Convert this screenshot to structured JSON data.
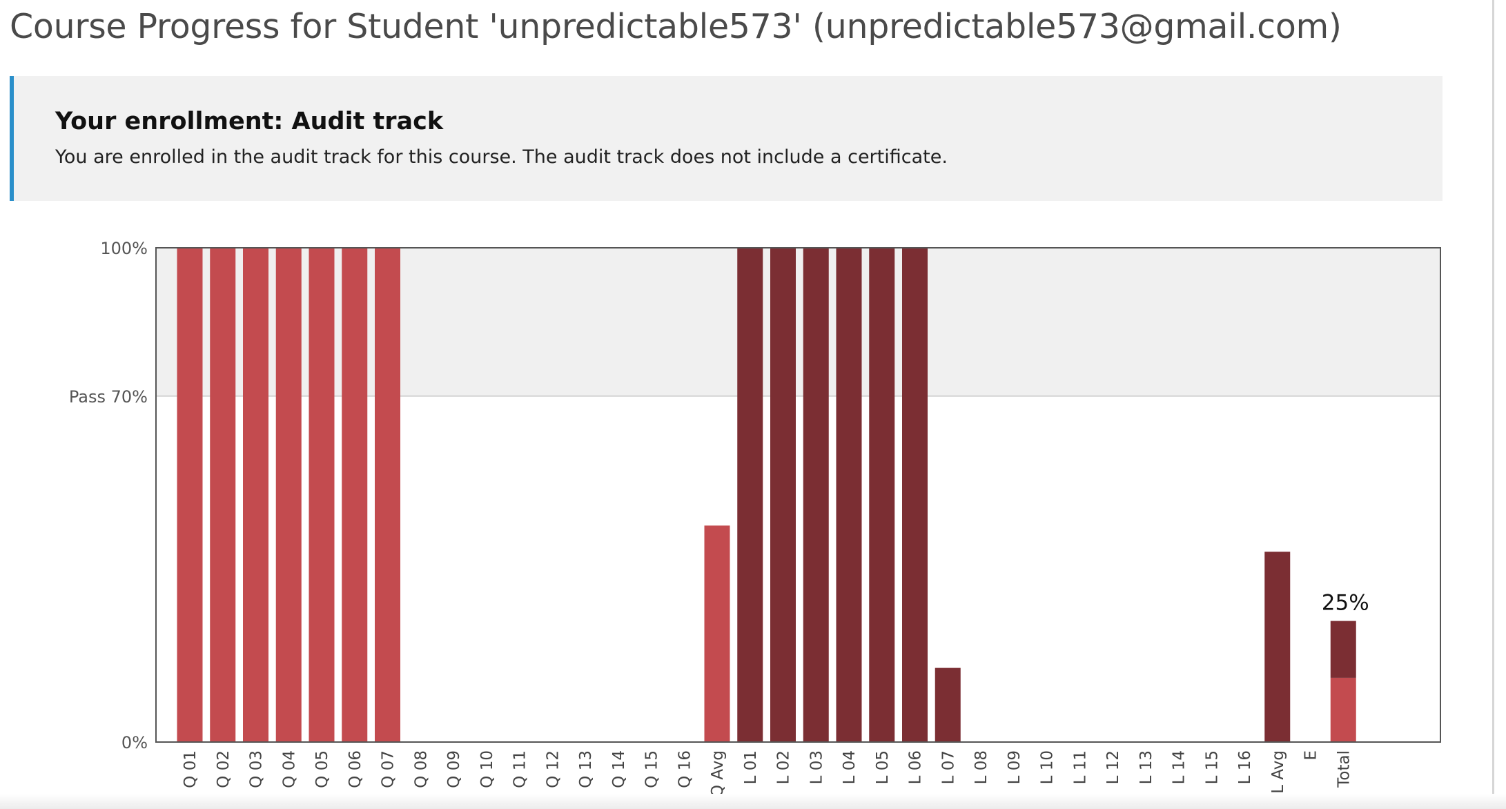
{
  "page": {
    "title": "Course Progress for Student 'unpredictable573' (unpredictable573@gmail.com)"
  },
  "enrollment": {
    "heading": "Your enrollment: Audit track",
    "message": "You are enrolled in the audit track for this course. The audit track does not include a certificate."
  },
  "colors": {
    "accent_border": "#2a8fca",
    "quiz_bar": "#c34b4f",
    "lab_bar": "#7b2e33",
    "pass_band": "#f0f0f0"
  },
  "chart_data": {
    "type": "bar",
    "ylim": [
      0,
      100
    ],
    "y_ticks": [
      {
        "value": 100,
        "label": "100%"
      },
      {
        "value": 70,
        "label": "Pass 70%"
      },
      {
        "value": 0,
        "label": "0%"
      }
    ],
    "pass_threshold": 70,
    "categories": [
      "Q 01",
      "Q 02",
      "Q 03",
      "Q 04",
      "Q 05",
      "Q 06",
      "Q 07",
      "Q 08",
      "Q 09",
      "Q 10",
      "Q 11",
      "Q 12",
      "Q 13",
      "Q 14",
      "Q 15",
      "Q 16",
      "Q Avg",
      "L 01",
      "L 02",
      "L 03",
      "L 04",
      "L 05",
      "L 06",
      "L 07",
      "L 08",
      "L 09",
      "L 10",
      "L 11",
      "L 12",
      "L 13",
      "L 14",
      "L 15",
      "L 16",
      "L Avg",
      "E",
      "Total"
    ],
    "bars": [
      {
        "category": "Q 01",
        "value": 100,
        "group": "quiz"
      },
      {
        "category": "Q 02",
        "value": 100,
        "group": "quiz"
      },
      {
        "category": "Q 03",
        "value": 100,
        "group": "quiz"
      },
      {
        "category": "Q 04",
        "value": 100,
        "group": "quiz"
      },
      {
        "category": "Q 05",
        "value": 100,
        "group": "quiz"
      },
      {
        "category": "Q 06",
        "value": 100,
        "group": "quiz"
      },
      {
        "category": "Q 07",
        "value": 100,
        "group": "quiz"
      },
      {
        "category": "Q 08",
        "value": 0,
        "group": "quiz"
      },
      {
        "category": "Q 09",
        "value": 0,
        "group": "quiz"
      },
      {
        "category": "Q 10",
        "value": 0,
        "group": "quiz"
      },
      {
        "category": "Q 11",
        "value": 0,
        "group": "quiz"
      },
      {
        "category": "Q 12",
        "value": 0,
        "group": "quiz"
      },
      {
        "category": "Q 13",
        "value": 0,
        "group": "quiz"
      },
      {
        "category": "Q 14",
        "value": 0,
        "group": "quiz"
      },
      {
        "category": "Q 15",
        "value": 0,
        "group": "quiz"
      },
      {
        "category": "Q 16",
        "value": 0,
        "group": "quiz"
      },
      {
        "category": "Q Avg",
        "value": 43.8,
        "group": "quiz"
      },
      {
        "category": "L 01",
        "value": 100,
        "group": "lab"
      },
      {
        "category": "L 02",
        "value": 100,
        "group": "lab"
      },
      {
        "category": "L 03",
        "value": 100,
        "group": "lab"
      },
      {
        "category": "L 04",
        "value": 100,
        "group": "lab"
      },
      {
        "category": "L 05",
        "value": 100,
        "group": "lab"
      },
      {
        "category": "L 06",
        "value": 100,
        "group": "lab"
      },
      {
        "category": "L 07",
        "value": 15,
        "group": "lab"
      },
      {
        "category": "L 08",
        "value": 0,
        "group": "lab"
      },
      {
        "category": "L 09",
        "value": 0,
        "group": "lab"
      },
      {
        "category": "L 10",
        "value": 0,
        "group": "lab"
      },
      {
        "category": "L 11",
        "value": 0,
        "group": "lab"
      },
      {
        "category": "L 12",
        "value": 0,
        "group": "lab"
      },
      {
        "category": "L 13",
        "value": 0,
        "group": "lab"
      },
      {
        "category": "L 14",
        "value": 0,
        "group": "lab"
      },
      {
        "category": "L 15",
        "value": 0,
        "group": "lab"
      },
      {
        "category": "L 16",
        "value": 0,
        "group": "lab"
      },
      {
        "category": "L Avg",
        "value": 38.5,
        "group": "lab"
      },
      {
        "category": "E",
        "value": 0,
        "group": "exam"
      }
    ],
    "total": {
      "category": "Total",
      "segments": [
        {
          "group": "quiz",
          "value": 13
        },
        {
          "group": "lab",
          "value": 11.5
        }
      ],
      "label": "25%"
    }
  }
}
